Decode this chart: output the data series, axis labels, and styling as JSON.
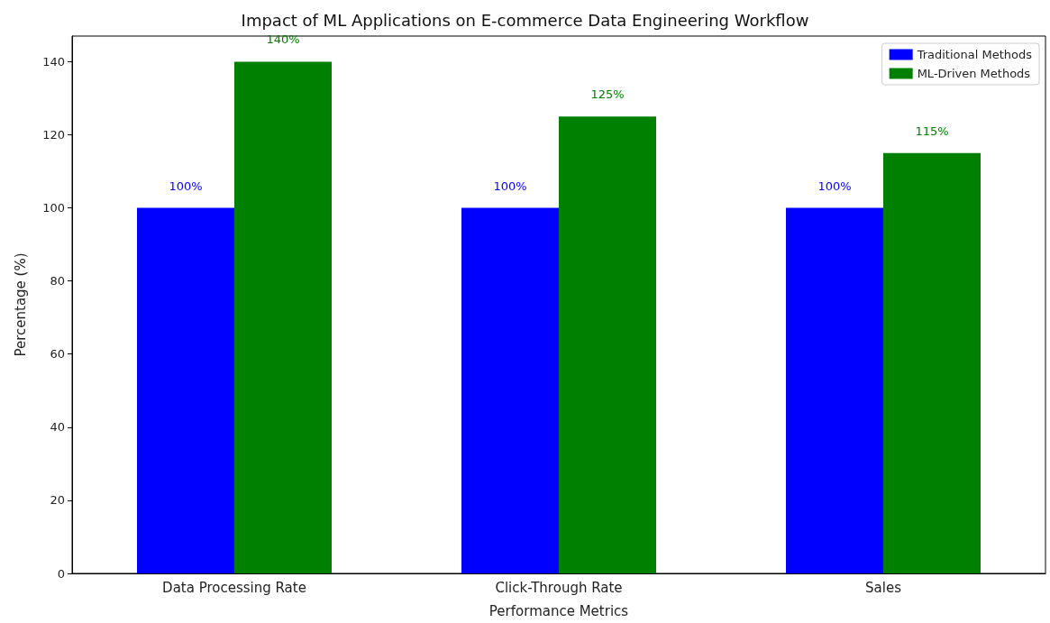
{
  "chart_data": {
    "type": "bar",
    "title": "Impact of ML Applications on E-commerce Data Engineering Workflow",
    "xlabel": "Performance Metrics",
    "ylabel": "Percentage (%)",
    "categories": [
      "Data Processing Rate",
      "Click-Through Rate",
      "Sales"
    ],
    "series": [
      {
        "name": "Traditional Methods",
        "color": "#0000ff",
        "values": [
          100,
          100,
          100
        ],
        "value_labels": [
          "100%",
          "100%",
          "100%"
        ]
      },
      {
        "name": "ML-Driven Methods",
        "color": "#008000",
        "values": [
          140,
          125,
          115
        ],
        "value_labels": [
          "140%",
          "125%",
          "115%"
        ]
      }
    ],
    "ylim": [
      0,
      147
    ],
    "yticks": [
      0,
      20,
      40,
      60,
      80,
      100,
      120,
      140
    ],
    "grid": false,
    "legend": "top right"
  }
}
